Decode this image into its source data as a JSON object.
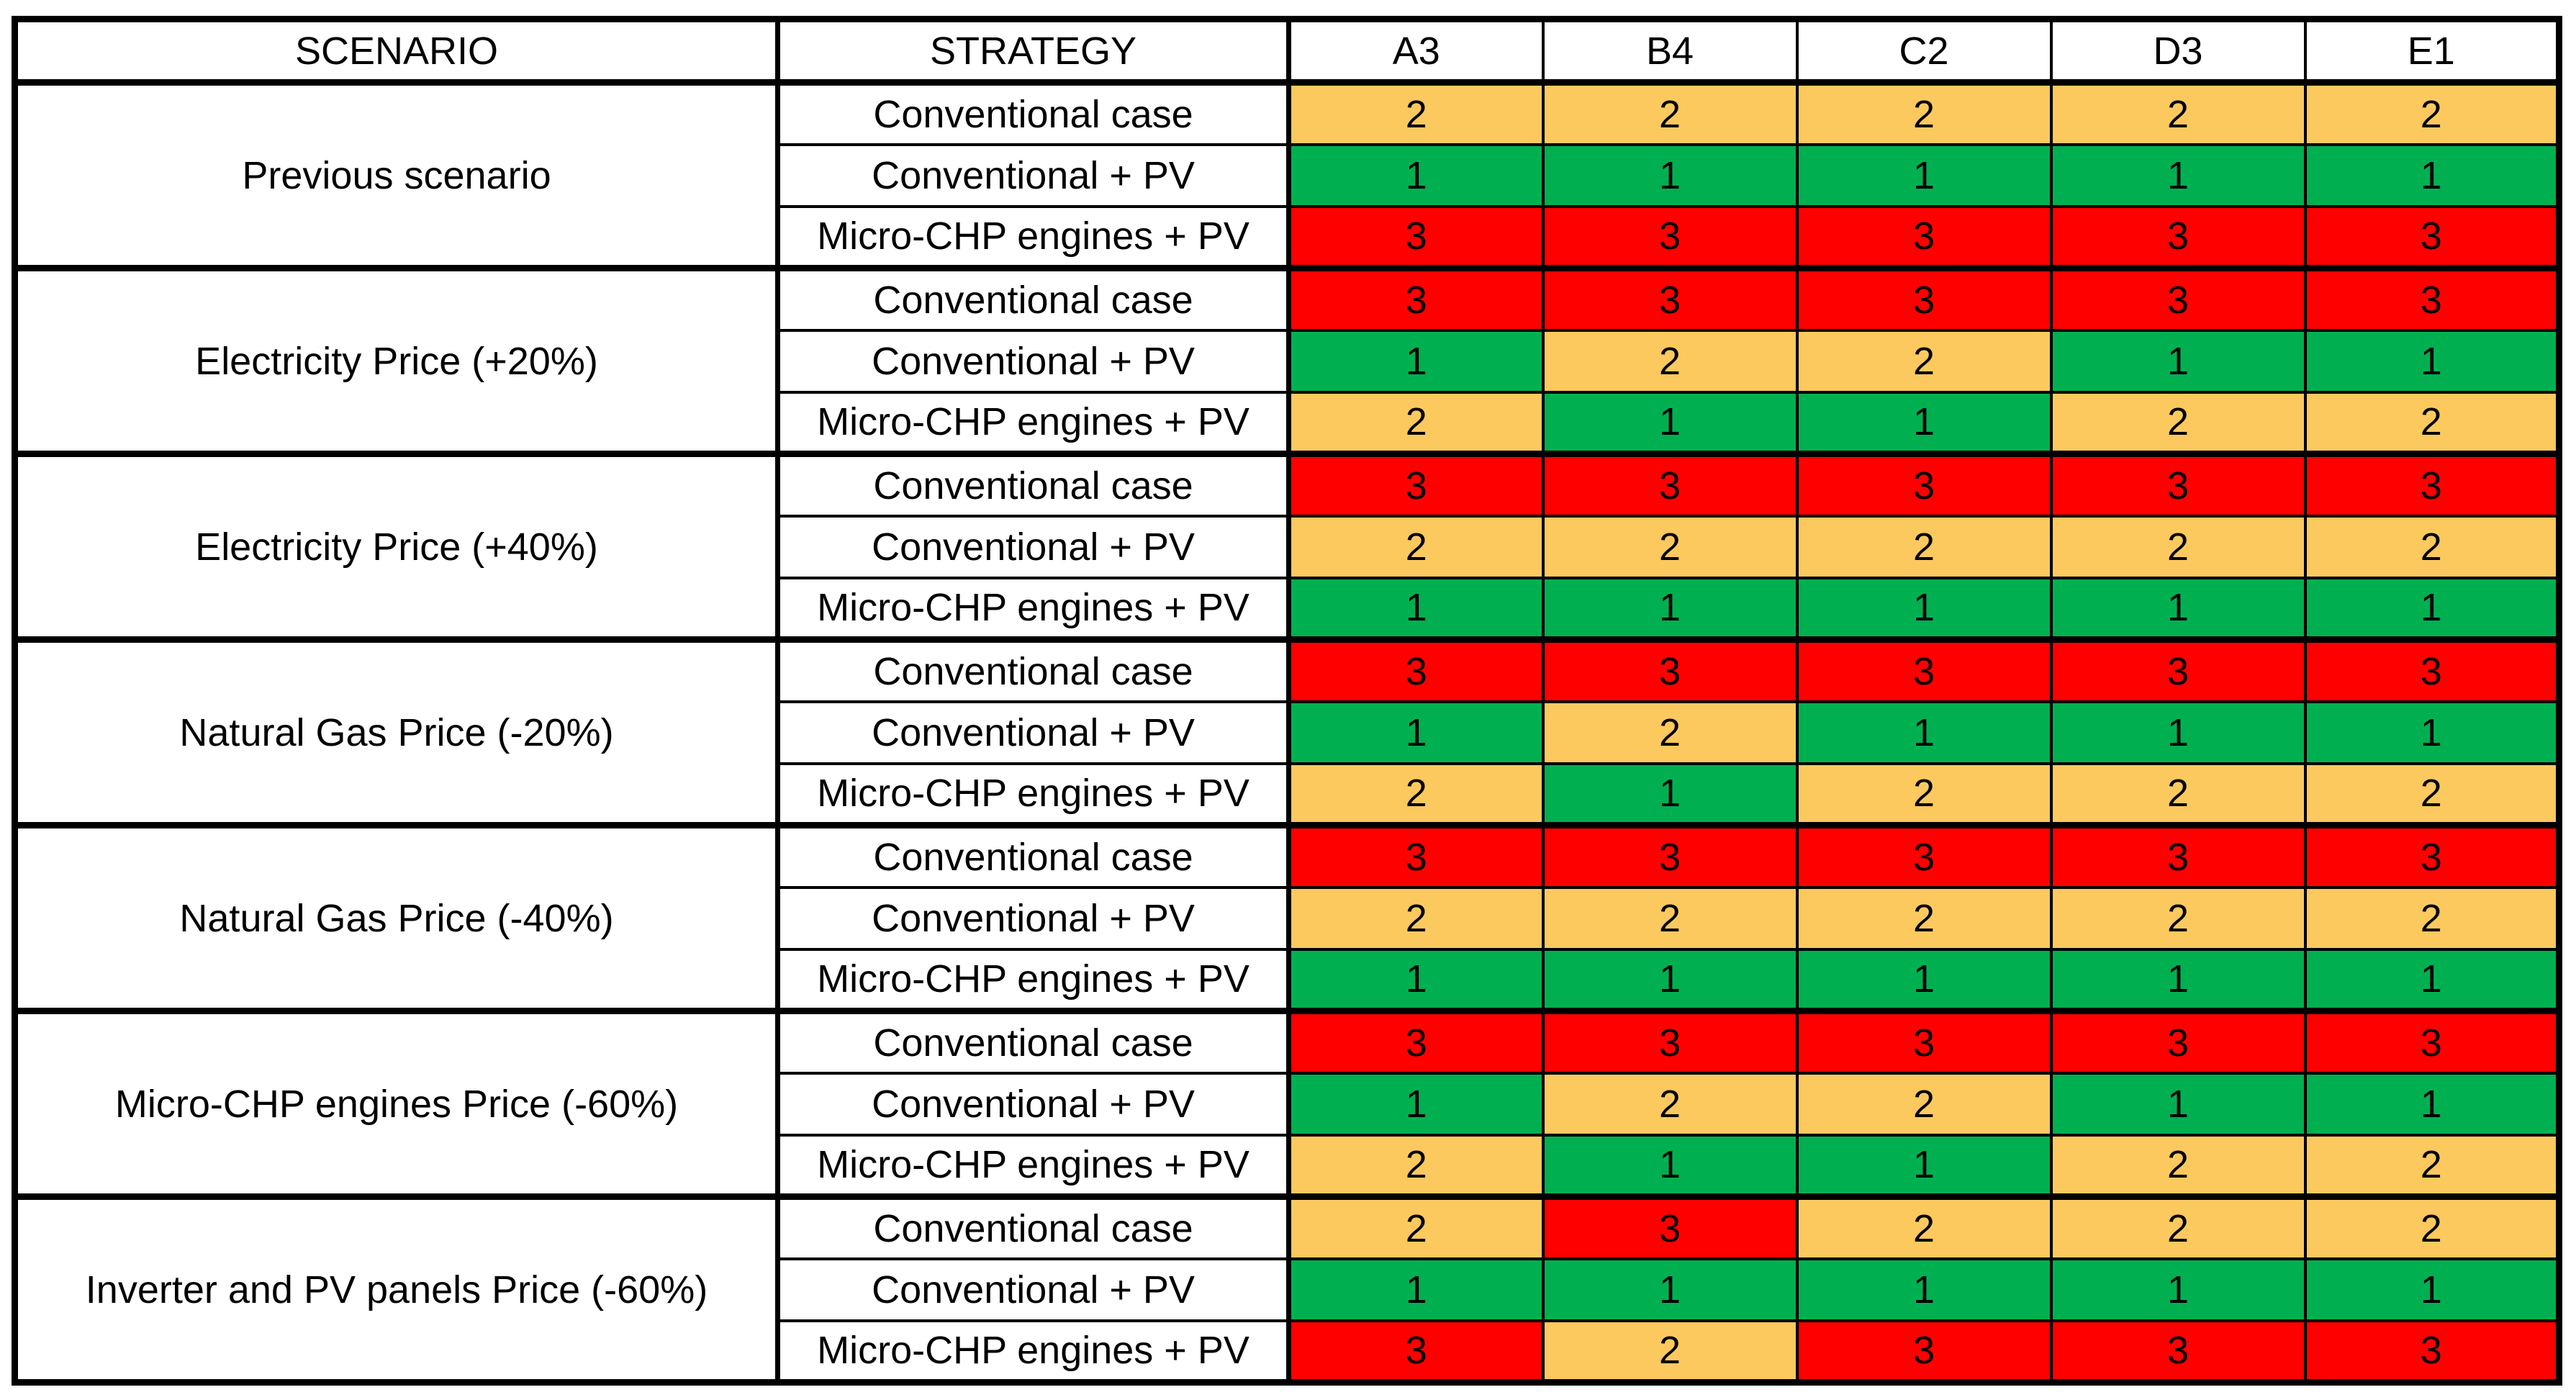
{
  "chart_data": {
    "type": "table",
    "header": {
      "scenario": "SCENARIO",
      "strategy": "STRATEGY",
      "cases": [
        "A3",
        "B4",
        "C2",
        "D3",
        "E1"
      ]
    },
    "color_map": {
      "1": "#00B050",
      "2": "#FCC95F",
      "3": "#FF0000"
    },
    "scenarios": [
      {
        "name": "Previous scenario",
        "rows": [
          {
            "strategy": "Conventional case",
            "values": [
              2,
              2,
              2,
              2,
              2
            ]
          },
          {
            "strategy": "Conventional + PV",
            "values": [
              1,
              1,
              1,
              1,
              1
            ]
          },
          {
            "strategy": "Micro-CHP engines + PV",
            "values": [
              3,
              3,
              3,
              3,
              3
            ]
          }
        ]
      },
      {
        "name": "Electricity Price (+20%)",
        "rows": [
          {
            "strategy": "Conventional case",
            "values": [
              3,
              3,
              3,
              3,
              3
            ]
          },
          {
            "strategy": "Conventional + PV",
            "values": [
              1,
              2,
              2,
              1,
              1
            ]
          },
          {
            "strategy": "Micro-CHP engines + PV",
            "values": [
              2,
              1,
              1,
              2,
              2
            ]
          }
        ]
      },
      {
        "name": "Electricity Price (+40%)",
        "rows": [
          {
            "strategy": "Conventional case",
            "values": [
              3,
              3,
              3,
              3,
              3
            ]
          },
          {
            "strategy": "Conventional + PV",
            "values": [
              2,
              2,
              2,
              2,
              2
            ]
          },
          {
            "strategy": "Micro-CHP engines + PV",
            "values": [
              1,
              1,
              1,
              1,
              1
            ]
          }
        ]
      },
      {
        "name": "Natural Gas Price (-20%)",
        "rows": [
          {
            "strategy": "Conventional case",
            "values": [
              3,
              3,
              3,
              3,
              3
            ]
          },
          {
            "strategy": "Conventional + PV",
            "values": [
              1,
              2,
              1,
              1,
              1
            ]
          },
          {
            "strategy": "Micro-CHP engines + PV",
            "values": [
              2,
              1,
              2,
              2,
              2
            ]
          }
        ]
      },
      {
        "name": "Natural Gas Price (-40%)",
        "rows": [
          {
            "strategy": "Conventional case",
            "values": [
              3,
              3,
              3,
              3,
              3
            ]
          },
          {
            "strategy": "Conventional + PV",
            "values": [
              2,
              2,
              2,
              2,
              2
            ]
          },
          {
            "strategy": "Micro-CHP engines + PV",
            "values": [
              1,
              1,
              1,
              1,
              1
            ]
          }
        ]
      },
      {
        "name": "Micro-CHP engines Price (-60%)",
        "rows": [
          {
            "strategy": "Conventional case",
            "values": [
              3,
              3,
              3,
              3,
              3
            ]
          },
          {
            "strategy": "Conventional + PV",
            "values": [
              1,
              2,
              2,
              1,
              1
            ]
          },
          {
            "strategy": "Micro-CHP engines + PV",
            "values": [
              2,
              1,
              1,
              2,
              2
            ]
          }
        ]
      },
      {
        "name": "Inverter and PV panels Price (-60%)",
        "rows": [
          {
            "strategy": "Conventional case",
            "values": [
              2,
              3,
              2,
              2,
              2
            ]
          },
          {
            "strategy": "Conventional + PV",
            "values": [
              1,
              1,
              1,
              1,
              1
            ]
          },
          {
            "strategy": "Micro-CHP engines + PV",
            "values": [
              3,
              2,
              3,
              3,
              3
            ]
          }
        ]
      }
    ]
  }
}
